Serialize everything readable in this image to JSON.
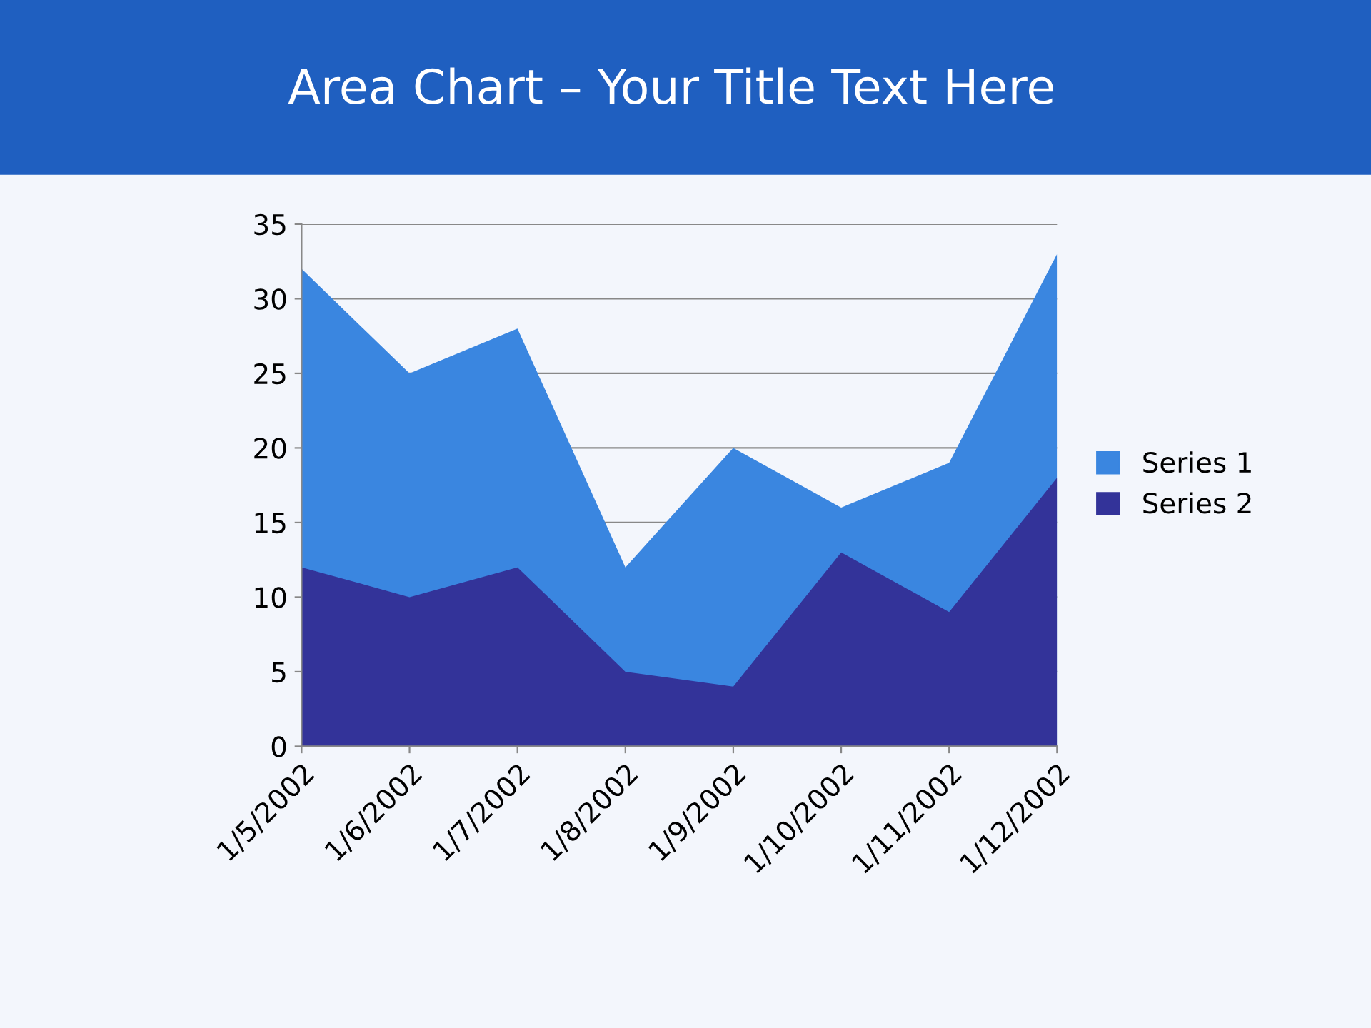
{
  "chart_data": {
    "type": "area",
    "title": "Area Chart – Your Title Text Here",
    "categories": [
      "1/5/2002",
      "1/6/2002",
      "1/7/2002",
      "1/8/2002",
      "1/9/2002",
      "1/10/2002",
      "1/11/2002",
      "1/12/2002"
    ],
    "series": [
      {
        "name": "Series 1",
        "color": "#3a86e0",
        "values": [
          32,
          25,
          28,
          12,
          20,
          16,
          19,
          33
        ]
      },
      {
        "name": "Series 2",
        "color": "#333399",
        "values": [
          12,
          10,
          12,
          5,
          4,
          13,
          9,
          18
        ]
      }
    ],
    "ylim": [
      0,
      35
    ],
    "yticks": [
      0,
      5,
      10,
      15,
      20,
      25,
      30,
      35
    ],
    "grid": "y",
    "legend": "right"
  }
}
